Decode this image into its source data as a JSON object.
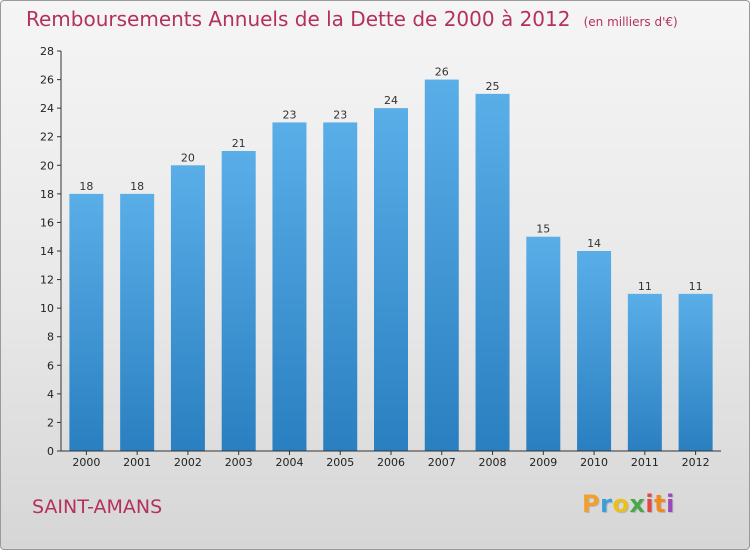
{
  "chart_data": {
    "type": "bar",
    "title": "Remboursements Annuels de la Dette de 2000 à 2012",
    "subtitle": "(en milliers d'€)",
    "categories": [
      "2000",
      "2001",
      "2002",
      "2003",
      "2004",
      "2005",
      "2006",
      "2007",
      "2008",
      "2009",
      "2010",
      "2011",
      "2012"
    ],
    "values": [
      18,
      18,
      20,
      21,
      23,
      23,
      24,
      26,
      25,
      15,
      14,
      11,
      11
    ],
    "ylim": [
      0,
      28
    ],
    "yticks": [
      0,
      2,
      4,
      6,
      8,
      10,
      12,
      14,
      16,
      18,
      20,
      22,
      24,
      26,
      28
    ],
    "xlabel": "",
    "ylabel": "",
    "grid": false,
    "bar_color_top": "#5aaee8",
    "bar_color_bottom": "#2a7fc0",
    "data_labels": true
  },
  "commune_name": "SAINT-AMANS",
  "logo": {
    "letters": [
      "P",
      "r",
      "o",
      "x",
      "i",
      "t",
      "i"
    ],
    "colors": [
      "#f0a030",
      "#3a9fd8",
      "#e8c020",
      "#4aa84a",
      "#e04848",
      "#f08a20",
      "#9a4ab8"
    ]
  },
  "colors": {
    "title": "#b4305e",
    "axis": "#333333"
  }
}
